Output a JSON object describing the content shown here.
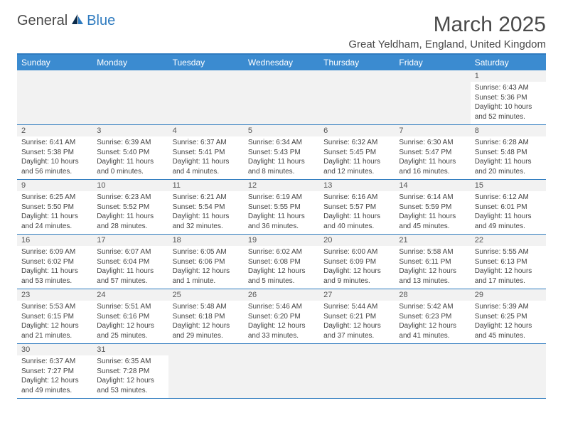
{
  "logo": {
    "dark": "General",
    "blue": "Blue"
  },
  "title": {
    "month": "March 2025",
    "location": "Great Yeldham, England, United Kingdom"
  },
  "colors": {
    "brand_blue": "#2f7bbf",
    "header_bg": "#3b8bd0",
    "day_bg": "#f2f2f2",
    "text": "#4a4a4a",
    "cell_text": "#444"
  },
  "weekdays": [
    "Sunday",
    "Monday",
    "Tuesday",
    "Wednesday",
    "Thursday",
    "Friday",
    "Saturday"
  ],
  "weeks": [
    [
      null,
      null,
      null,
      null,
      null,
      null,
      {
        "n": "1",
        "sr": "Sunrise: 6:43 AM",
        "ss": "Sunset: 5:36 PM",
        "dl1": "Daylight: 10 hours",
        "dl2": "and 52 minutes."
      }
    ],
    [
      {
        "n": "2",
        "sr": "Sunrise: 6:41 AM",
        "ss": "Sunset: 5:38 PM",
        "dl1": "Daylight: 10 hours",
        "dl2": "and 56 minutes."
      },
      {
        "n": "3",
        "sr": "Sunrise: 6:39 AM",
        "ss": "Sunset: 5:40 PM",
        "dl1": "Daylight: 11 hours",
        "dl2": "and 0 minutes."
      },
      {
        "n": "4",
        "sr": "Sunrise: 6:37 AM",
        "ss": "Sunset: 5:41 PM",
        "dl1": "Daylight: 11 hours",
        "dl2": "and 4 minutes."
      },
      {
        "n": "5",
        "sr": "Sunrise: 6:34 AM",
        "ss": "Sunset: 5:43 PM",
        "dl1": "Daylight: 11 hours",
        "dl2": "and 8 minutes."
      },
      {
        "n": "6",
        "sr": "Sunrise: 6:32 AM",
        "ss": "Sunset: 5:45 PM",
        "dl1": "Daylight: 11 hours",
        "dl2": "and 12 minutes."
      },
      {
        "n": "7",
        "sr": "Sunrise: 6:30 AM",
        "ss": "Sunset: 5:47 PM",
        "dl1": "Daylight: 11 hours",
        "dl2": "and 16 minutes."
      },
      {
        "n": "8",
        "sr": "Sunrise: 6:28 AM",
        "ss": "Sunset: 5:48 PM",
        "dl1": "Daylight: 11 hours",
        "dl2": "and 20 minutes."
      }
    ],
    [
      {
        "n": "9",
        "sr": "Sunrise: 6:25 AM",
        "ss": "Sunset: 5:50 PM",
        "dl1": "Daylight: 11 hours",
        "dl2": "and 24 minutes."
      },
      {
        "n": "10",
        "sr": "Sunrise: 6:23 AM",
        "ss": "Sunset: 5:52 PM",
        "dl1": "Daylight: 11 hours",
        "dl2": "and 28 minutes."
      },
      {
        "n": "11",
        "sr": "Sunrise: 6:21 AM",
        "ss": "Sunset: 5:54 PM",
        "dl1": "Daylight: 11 hours",
        "dl2": "and 32 minutes."
      },
      {
        "n": "12",
        "sr": "Sunrise: 6:19 AM",
        "ss": "Sunset: 5:55 PM",
        "dl1": "Daylight: 11 hours",
        "dl2": "and 36 minutes."
      },
      {
        "n": "13",
        "sr": "Sunrise: 6:16 AM",
        "ss": "Sunset: 5:57 PM",
        "dl1": "Daylight: 11 hours",
        "dl2": "and 40 minutes."
      },
      {
        "n": "14",
        "sr": "Sunrise: 6:14 AM",
        "ss": "Sunset: 5:59 PM",
        "dl1": "Daylight: 11 hours",
        "dl2": "and 45 minutes."
      },
      {
        "n": "15",
        "sr": "Sunrise: 6:12 AM",
        "ss": "Sunset: 6:01 PM",
        "dl1": "Daylight: 11 hours",
        "dl2": "and 49 minutes."
      }
    ],
    [
      {
        "n": "16",
        "sr": "Sunrise: 6:09 AM",
        "ss": "Sunset: 6:02 PM",
        "dl1": "Daylight: 11 hours",
        "dl2": "and 53 minutes."
      },
      {
        "n": "17",
        "sr": "Sunrise: 6:07 AM",
        "ss": "Sunset: 6:04 PM",
        "dl1": "Daylight: 11 hours",
        "dl2": "and 57 minutes."
      },
      {
        "n": "18",
        "sr": "Sunrise: 6:05 AM",
        "ss": "Sunset: 6:06 PM",
        "dl1": "Daylight: 12 hours",
        "dl2": "and 1 minute."
      },
      {
        "n": "19",
        "sr": "Sunrise: 6:02 AM",
        "ss": "Sunset: 6:08 PM",
        "dl1": "Daylight: 12 hours",
        "dl2": "and 5 minutes."
      },
      {
        "n": "20",
        "sr": "Sunrise: 6:00 AM",
        "ss": "Sunset: 6:09 PM",
        "dl1": "Daylight: 12 hours",
        "dl2": "and 9 minutes."
      },
      {
        "n": "21",
        "sr": "Sunrise: 5:58 AM",
        "ss": "Sunset: 6:11 PM",
        "dl1": "Daylight: 12 hours",
        "dl2": "and 13 minutes."
      },
      {
        "n": "22",
        "sr": "Sunrise: 5:55 AM",
        "ss": "Sunset: 6:13 PM",
        "dl1": "Daylight: 12 hours",
        "dl2": "and 17 minutes."
      }
    ],
    [
      {
        "n": "23",
        "sr": "Sunrise: 5:53 AM",
        "ss": "Sunset: 6:15 PM",
        "dl1": "Daylight: 12 hours",
        "dl2": "and 21 minutes."
      },
      {
        "n": "24",
        "sr": "Sunrise: 5:51 AM",
        "ss": "Sunset: 6:16 PM",
        "dl1": "Daylight: 12 hours",
        "dl2": "and 25 minutes."
      },
      {
        "n": "25",
        "sr": "Sunrise: 5:48 AM",
        "ss": "Sunset: 6:18 PM",
        "dl1": "Daylight: 12 hours",
        "dl2": "and 29 minutes."
      },
      {
        "n": "26",
        "sr": "Sunrise: 5:46 AM",
        "ss": "Sunset: 6:20 PM",
        "dl1": "Daylight: 12 hours",
        "dl2": "and 33 minutes."
      },
      {
        "n": "27",
        "sr": "Sunrise: 5:44 AM",
        "ss": "Sunset: 6:21 PM",
        "dl1": "Daylight: 12 hours",
        "dl2": "and 37 minutes."
      },
      {
        "n": "28",
        "sr": "Sunrise: 5:42 AM",
        "ss": "Sunset: 6:23 PM",
        "dl1": "Daylight: 12 hours",
        "dl2": "and 41 minutes."
      },
      {
        "n": "29",
        "sr": "Sunrise: 5:39 AM",
        "ss": "Sunset: 6:25 PM",
        "dl1": "Daylight: 12 hours",
        "dl2": "and 45 minutes."
      }
    ],
    [
      {
        "n": "30",
        "sr": "Sunrise: 6:37 AM",
        "ss": "Sunset: 7:27 PM",
        "dl1": "Daylight: 12 hours",
        "dl2": "and 49 minutes."
      },
      {
        "n": "31",
        "sr": "Sunrise: 6:35 AM",
        "ss": "Sunset: 7:28 PM",
        "dl1": "Daylight: 12 hours",
        "dl2": "and 53 minutes."
      },
      null,
      null,
      null,
      null,
      null
    ]
  ]
}
